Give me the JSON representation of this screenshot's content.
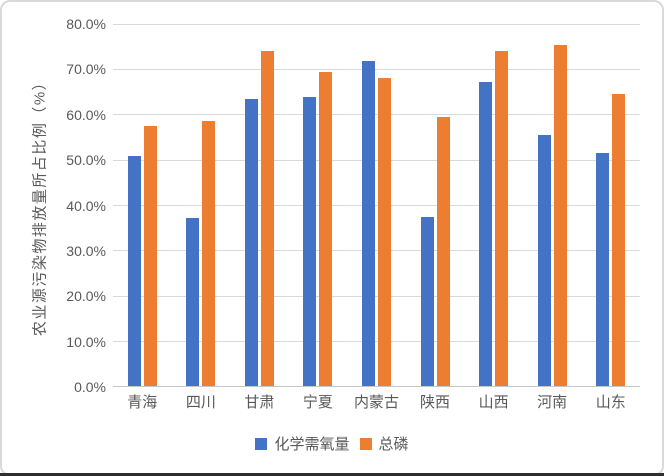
{
  "chart_data": {
    "type": "bar",
    "title": "",
    "xlabel": "",
    "ylabel": "农业源污染物排放量所占比例（%）",
    "categories": [
      "青海",
      "四川",
      "甘肃",
      "宁夏",
      "内蒙古",
      "陕西",
      "山西",
      "河南",
      "山东"
    ],
    "series": [
      {
        "name": "化学需氧量",
        "color": "#4472C4",
        "values": [
          50.7,
          37.0,
          63.2,
          63.7,
          71.6,
          37.2,
          66.9,
          55.3,
          51.4
        ]
      },
      {
        "name": "总磷",
        "color": "#ED7D31",
        "values": [
          57.4,
          58.4,
          73.8,
          69.1,
          67.8,
          59.2,
          73.9,
          75.2,
          64.4
        ]
      }
    ],
    "ylim": [
      0,
      80
    ],
    "ytick_step": 10,
    "ytick_labels": [
      "0.0%",
      "10.0%",
      "20.0%",
      "30.0%",
      "40.0%",
      "50.0%",
      "60.0%",
      "70.0%",
      "80.0%"
    ],
    "grid": true,
    "legend_position": "bottom"
  }
}
